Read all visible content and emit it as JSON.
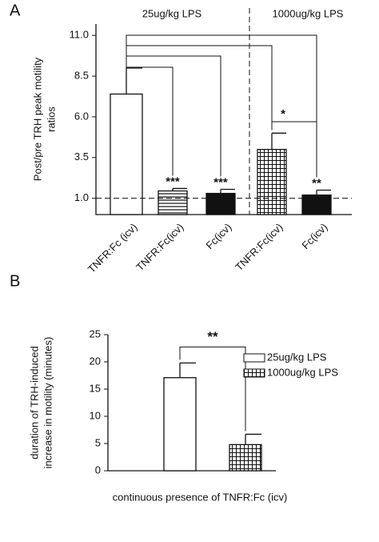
{
  "chart_data": [
    {
      "type": "bar",
      "panel": "A",
      "ylabel": [
        "Post/pre TRH peak motility",
        "ratios"
      ],
      "group_labels": [
        "25ug/kg LPS",
        "1000ug/kg LPS"
      ],
      "categories": [
        "TNFR:Fc (icv)",
        "TNFR:Fc(icv)",
        "Fc(icv)",
        "TNFR:Fc(icv)",
        "Fc(icv)"
      ],
      "values": [
        7.4,
        1.45,
        1.3,
        4.0,
        1.2
      ],
      "errors": [
        1.6,
        0.15,
        0.25,
        1.0,
        0.3
      ],
      "fills": [
        "white",
        "hstripe",
        "black",
        "grid",
        "black"
      ],
      "significance": [
        null,
        "***",
        "***",
        null,
        "**"
      ],
      "bracket_label": "*",
      "ylim": [
        0,
        11.7
      ],
      "yticks": [
        {
          "value": 1,
          "label": "1.0"
        },
        {
          "value": 3.5,
          "label": "3.5"
        },
        {
          "value": 6,
          "label": "6.0"
        },
        {
          "value": 8.5,
          "label": "8.5"
        },
        {
          "value": 11,
          "label": "11.0"
        }
      ],
      "hline": 1
    },
    {
      "type": "bar",
      "panel": "B",
      "ylabel": [
        "duration of TRH-induced",
        "increase in motility (minutes)"
      ],
      "xlabel": "continuous presence of TNFR:Fc (icv)",
      "series": [
        {
          "name": "25ug/kg LPS",
          "fill": "white",
          "values": [
            17.1
          ],
          "errors": [
            2.7
          ]
        },
        {
          "name": "1000ug/kg LPS",
          "fill": "grid",
          "values": [
            4.8
          ],
          "errors": [
            1.9
          ]
        }
      ],
      "significance_label": "**",
      "ylim": [
        0,
        25
      ],
      "yticks": [
        0,
        5,
        10,
        15,
        20,
        25
      ]
    }
  ]
}
